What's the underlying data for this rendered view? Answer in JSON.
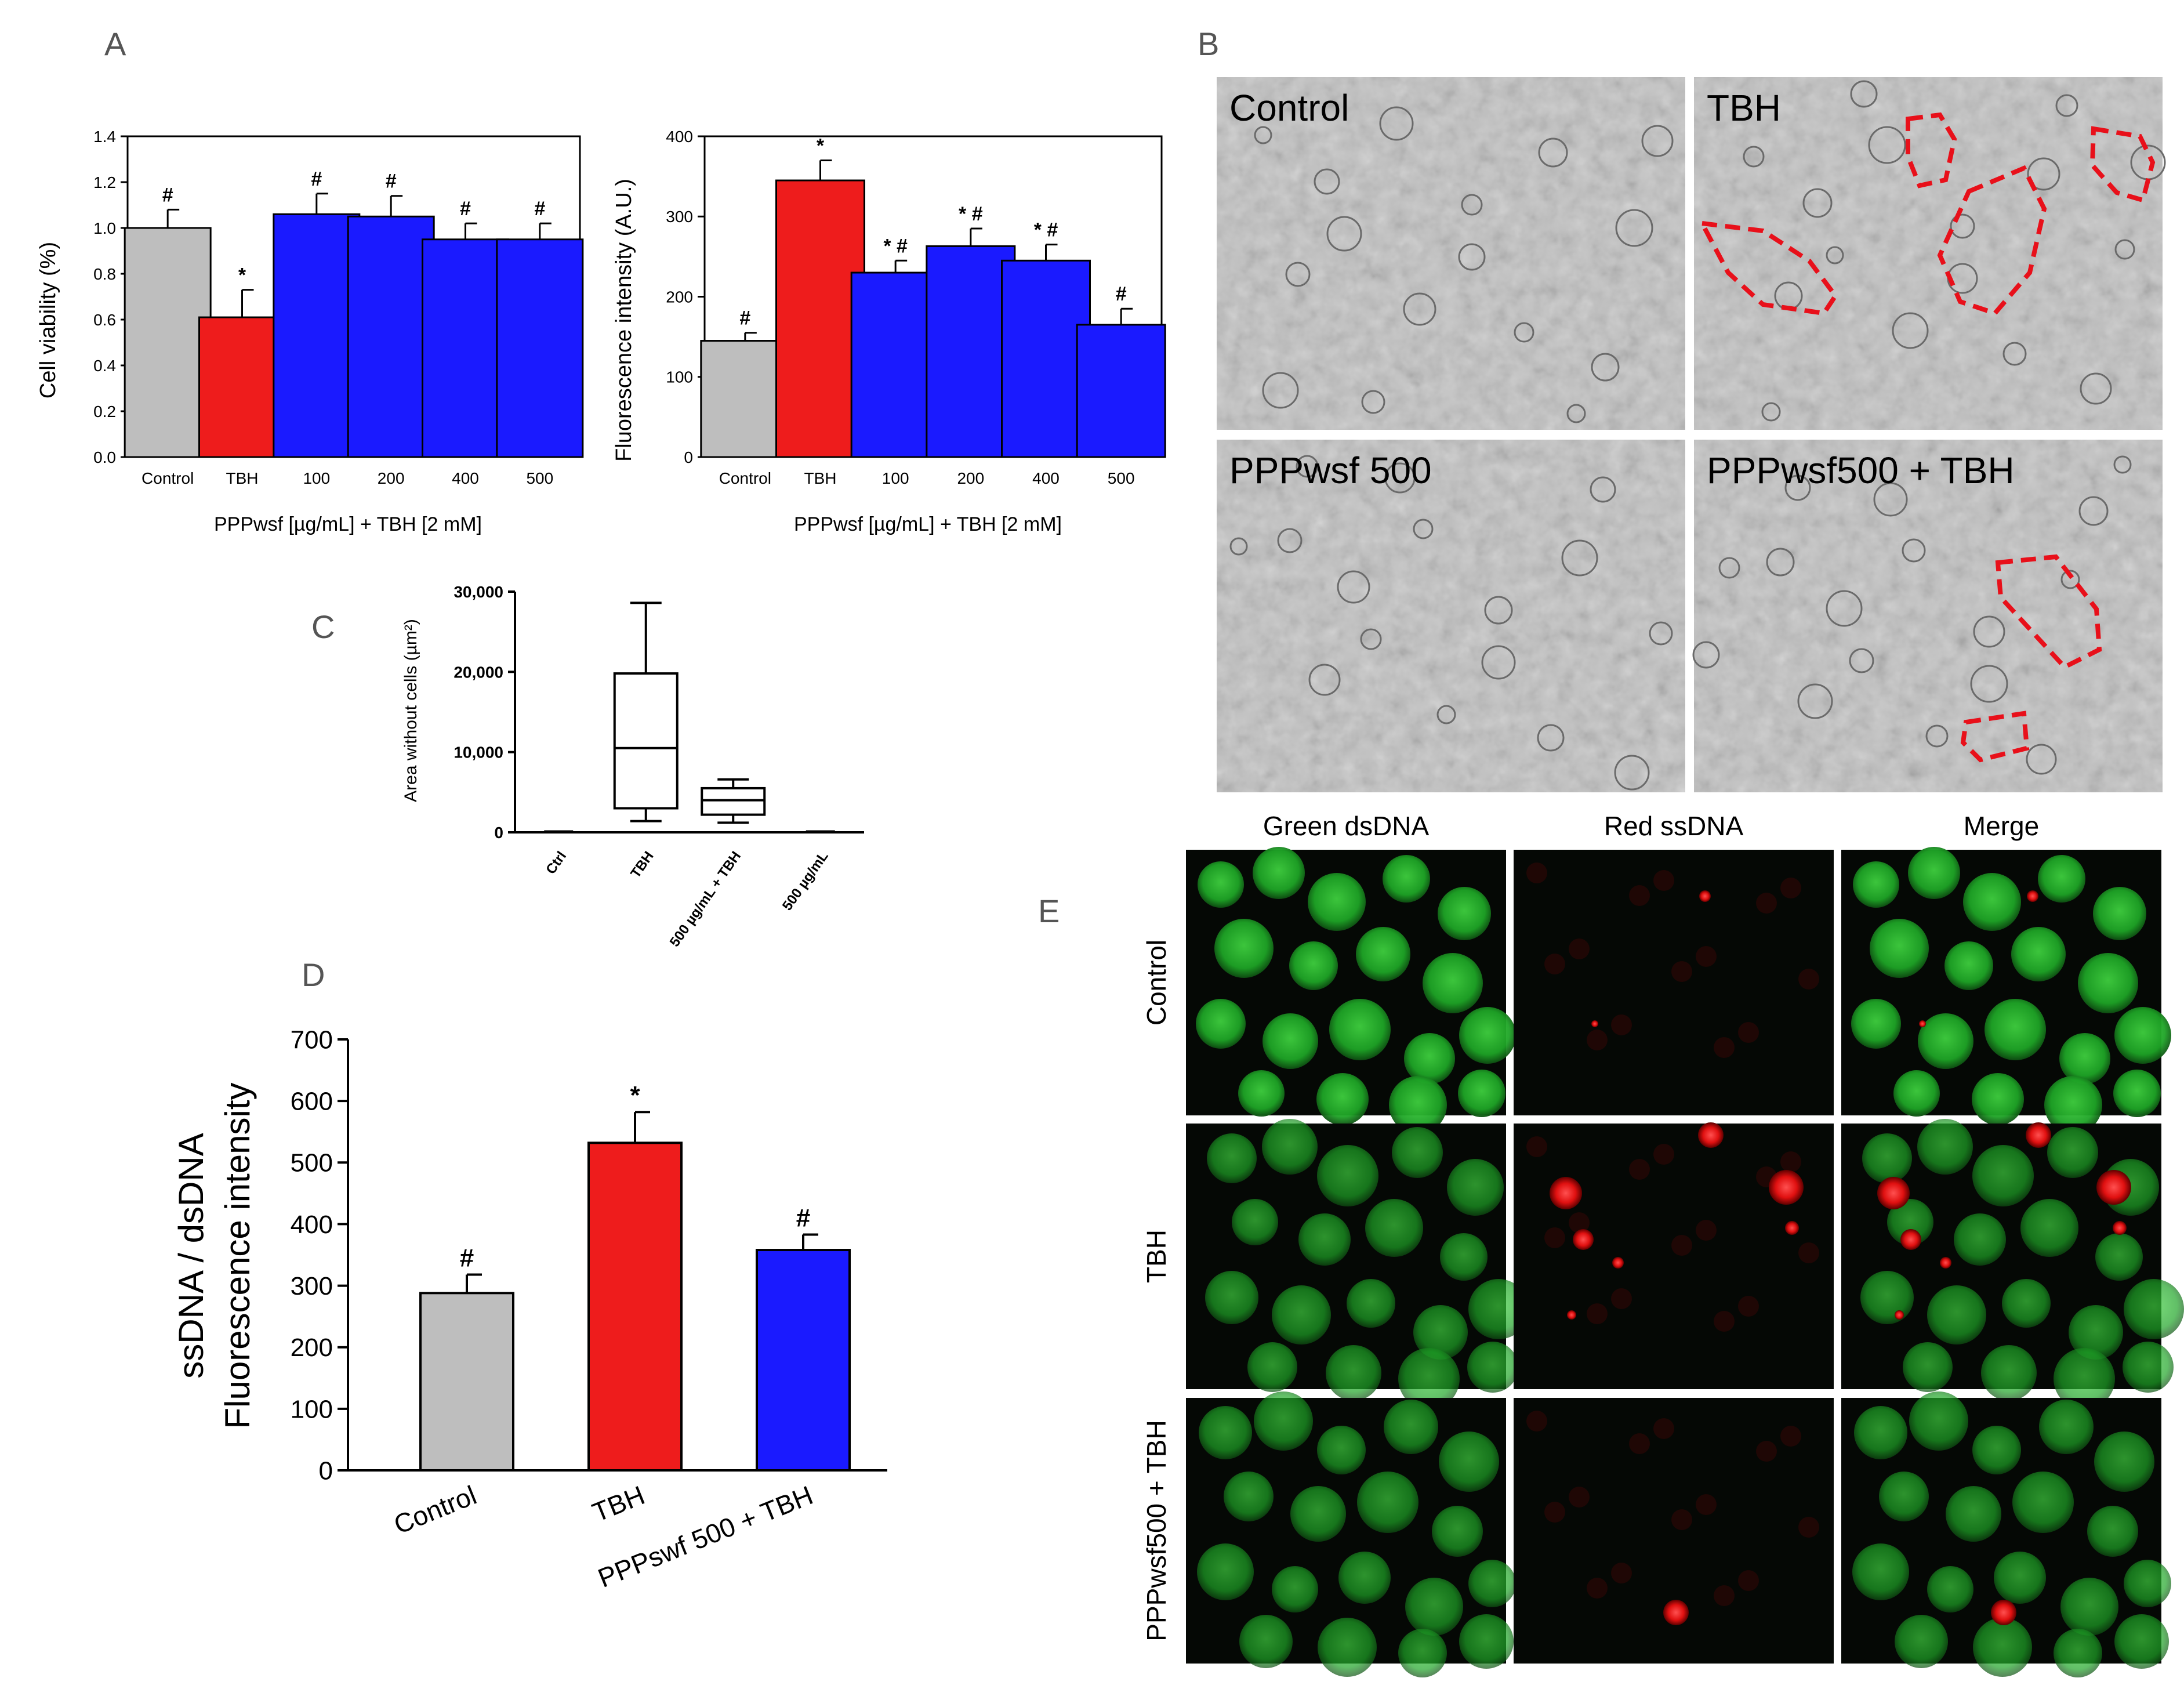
{
  "panel_letters": [
    "A",
    "B",
    "C",
    "D",
    "E"
  ],
  "colors": {
    "control": "#bebebe",
    "tbh": "#ee1c1c",
    "treat": "#1a1aff",
    "micro": "#c2c2c2",
    "dashed": "#e8101a"
  },
  "chart_data": [
    {
      "id": "A1",
      "type": "bar",
      "categories": [
        "Control",
        "TBH",
        "100",
        "200",
        "400",
        "500"
      ],
      "values": [
        1.0,
        0.61,
        1.06,
        1.05,
        0.95,
        0.95
      ],
      "errors": [
        0.08,
        0.12,
        0.09,
        0.09,
        0.07,
        0.07
      ],
      "marks": [
        "#",
        "*",
        "#",
        "#",
        "#",
        "#"
      ],
      "colors": [
        "#bebebe",
        "#ee1c1c",
        "#1a1aff",
        "#1a1aff",
        "#1a1aff",
        "#1a1aff"
      ],
      "ylabel": "Cell viability (%)",
      "xlabel": "PPPwsf [µg/mL] + TBH [2 mM]",
      "ylim": [
        0,
        1.4
      ],
      "yticks": [
        "0.0",
        "0.2",
        "0.4",
        "0.6",
        "0.8",
        "1.0",
        "1.2",
        "1.4"
      ]
    },
    {
      "id": "A2",
      "type": "bar",
      "categories": [
        "Control",
        "TBH",
        "100",
        "200",
        "400",
        "500"
      ],
      "values": [
        145,
        345,
        230,
        263,
        245,
        165
      ],
      "errors": [
        10,
        25,
        15,
        22,
        20,
        20
      ],
      "marks": [
        "#",
        "*",
        "* #",
        "* #",
        "* #",
        "#"
      ],
      "colors": [
        "#bebebe",
        "#ee1c1c",
        "#1a1aff",
        "#1a1aff",
        "#1a1aff",
        "#1a1aff"
      ],
      "ylabel": "Fluorescence intensity (A.U.)",
      "xlabel": "PPPwsf [µg/mL] + TBH [2 mM]",
      "ylim": [
        0,
        400
      ],
      "yticks": [
        "0",
        "100",
        "200",
        "300",
        "400"
      ]
    },
    {
      "id": "C",
      "type": "box",
      "categories": [
        "Ctrl",
        "TBH",
        "500 µg/mL + TBH",
        "500 µg/mL"
      ],
      "boxes": [
        {
          "min": 0,
          "q1": 0,
          "median": 0,
          "q3": 0,
          "max": 0
        },
        {
          "min": 1400,
          "q1": 3000,
          "median": 10500,
          "q3": 19800,
          "max": 28600
        },
        {
          "min": 1200,
          "q1": 2200,
          "median": 4000,
          "q3": 5500,
          "max": 6600
        },
        {
          "min": 0,
          "q1": 0,
          "median": 0,
          "q3": 0,
          "max": 0
        }
      ],
      "ylabel": "Area without cells (µm²)",
      "ylim": [
        0,
        30000
      ],
      "yticks": [
        "0",
        "10,000",
        "20,000",
        "30,000"
      ]
    },
    {
      "id": "D",
      "type": "bar",
      "categories": [
        "Control",
        "TBH",
        "PPPswf 500 + TBH"
      ],
      "values": [
        288,
        532,
        358
      ],
      "errors": [
        30,
        50,
        25
      ],
      "marks": [
        "#",
        "*",
        "#"
      ],
      "colors": [
        "#bebebe",
        "#ee1c1c",
        "#1a1aff"
      ],
      "ylabel_lines": [
        "ssDNA / dsDNA",
        "Fluorescence intensity"
      ],
      "ylim": [
        0,
        700
      ],
      "yticks": [
        "0",
        "100",
        "200",
        "300",
        "400",
        "500",
        "600",
        "700"
      ]
    }
  ],
  "panel_b": {
    "labels": [
      "Control",
      "TBH",
      "PPPwsf 500",
      "PPPwsf500 + TBH"
    ]
  },
  "panel_e": {
    "columns": [
      "Green dsDNA",
      "Red ssDNA",
      "Merge"
    ],
    "rows": [
      "Control",
      "TBH",
      "PPPwsf500 + TBH"
    ]
  }
}
